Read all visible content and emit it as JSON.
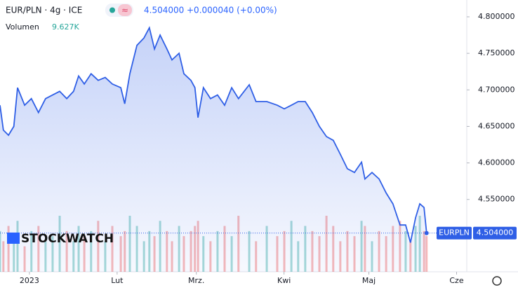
{
  "header": {
    "symbol": "EUR/PLN · 4g · ICE",
    "price": "4.504000",
    "change": "+0.000040 (+0.00%)",
    "volume_label": "Volumen",
    "volume_value": "9.627K",
    "logo": "STOCKWATCH"
  },
  "chart_data": {
    "type": "line",
    "x": [
      -10.4,
      -9.2,
      -7.4,
      -5.5,
      -4.2,
      -1.7,
      0.7,
      3.2,
      5.7,
      8.2,
      10.7,
      13.2,
      15.6,
      17.4,
      19.4,
      21.8,
      24.3,
      26.8,
      29.3,
      32.3,
      33.7,
      35.5,
      38,
      40.5,
      42.4,
      44.2,
      46.2,
      48.6,
      50.4,
      52.9,
      54.6,
      57.1,
      58.5,
      59.6,
      61.5,
      64,
      66.5,
      69,
      71.5,
      73.9,
      77.7,
      80.1,
      83.9,
      87.6,
      90.1,
      92.6,
      95,
      97.5,
      100,
      102.5,
      105,
      107.4,
      109.9,
      112.4,
      114.9,
      117.4,
      118.6,
      121.1,
      123.6,
      126.1,
      128.5,
      131,
      133,
      134.7,
      136.5,
      138,
      139.5,
      140.4
    ],
    "series": [
      {
        "name": "EURPLN",
        "color": "#2f5fe6",
        "values": [
          4.679,
          4.645,
          4.638,
          4.65,
          4.703,
          4.679,
          4.688,
          4.669,
          4.688,
          4.693,
          4.698,
          4.688,
          4.698,
          4.719,
          4.708,
          4.722,
          4.713,
          4.717,
          4.708,
          4.703,
          4.681,
          4.722,
          4.761,
          4.771,
          4.785,
          4.756,
          4.775,
          4.756,
          4.741,
          4.75,
          4.722,
          4.713,
          4.703,
          4.662,
          4.703,
          4.688,
          4.693,
          4.679,
          4.703,
          4.688,
          4.707,
          4.684,
          4.684,
          4.679,
          4.674,
          4.679,
          4.684,
          4.684,
          4.669,
          4.65,
          4.636,
          4.631,
          4.612,
          4.592,
          4.587,
          4.601,
          4.578,
          4.587,
          4.578,
          4.559,
          4.544,
          4.515,
          4.515,
          4.491,
          4.525,
          4.544,
          4.539,
          4.504
        ]
      }
    ],
    "volume": {
      "values": [
        8,
        6,
        9,
        7,
        10,
        5,
        8,
        9,
        6,
        7,
        11,
        8,
        6,
        9,
        7,
        8,
        10,
        6,
        9,
        7,
        8,
        11,
        9,
        6,
        8,
        7,
        10,
        8,
        6,
        9,
        7,
        8,
        9,
        10,
        7,
        6,
        8,
        9,
        7,
        11,
        8,
        6,
        9,
        7,
        8,
        10,
        6,
        9,
        8,
        7,
        11,
        9,
        6,
        8,
        7,
        10,
        9,
        6,
        8,
        7,
        9,
        10,
        8,
        6,
        9,
        11,
        8,
        7
      ]
    },
    "xlim": [
      -10.4,
      154.6
    ],
    "xticks": [
      {
        "value": 0,
        "label": "2023"
      },
      {
        "value": 31,
        "label": "Lut"
      },
      {
        "value": 59,
        "label": "Mrz."
      },
      {
        "value": 90,
        "label": "Kwi"
      },
      {
        "value": 120,
        "label": "Maj"
      },
      {
        "value": 151,
        "label": "Cze"
      }
    ],
    "ylim": [
      4.451,
      4.823
    ],
    "yticks": [
      {
        "value": 4.55,
        "label": "4.550000"
      },
      {
        "value": 4.6,
        "label": "4.600000"
      },
      {
        "value": 4.65,
        "label": "4.650000"
      },
      {
        "value": 4.7,
        "label": "4.700000"
      },
      {
        "value": 4.75,
        "label": "4.750000"
      },
      {
        "value": 4.8,
        "label": "4.800000"
      }
    ]
  }
}
